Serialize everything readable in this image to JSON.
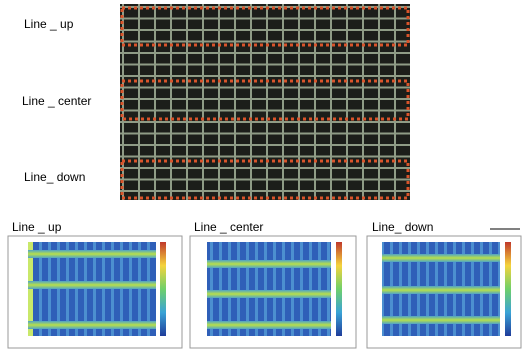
{
  "top_labels": [
    "Line _ up",
    "Line _ center",
    "Line_ down"
  ],
  "panels": [
    {
      "title": "Line _ up"
    },
    {
      "title": "Line _ center"
    },
    {
      "title": "Line_ down"
    }
  ]
}
